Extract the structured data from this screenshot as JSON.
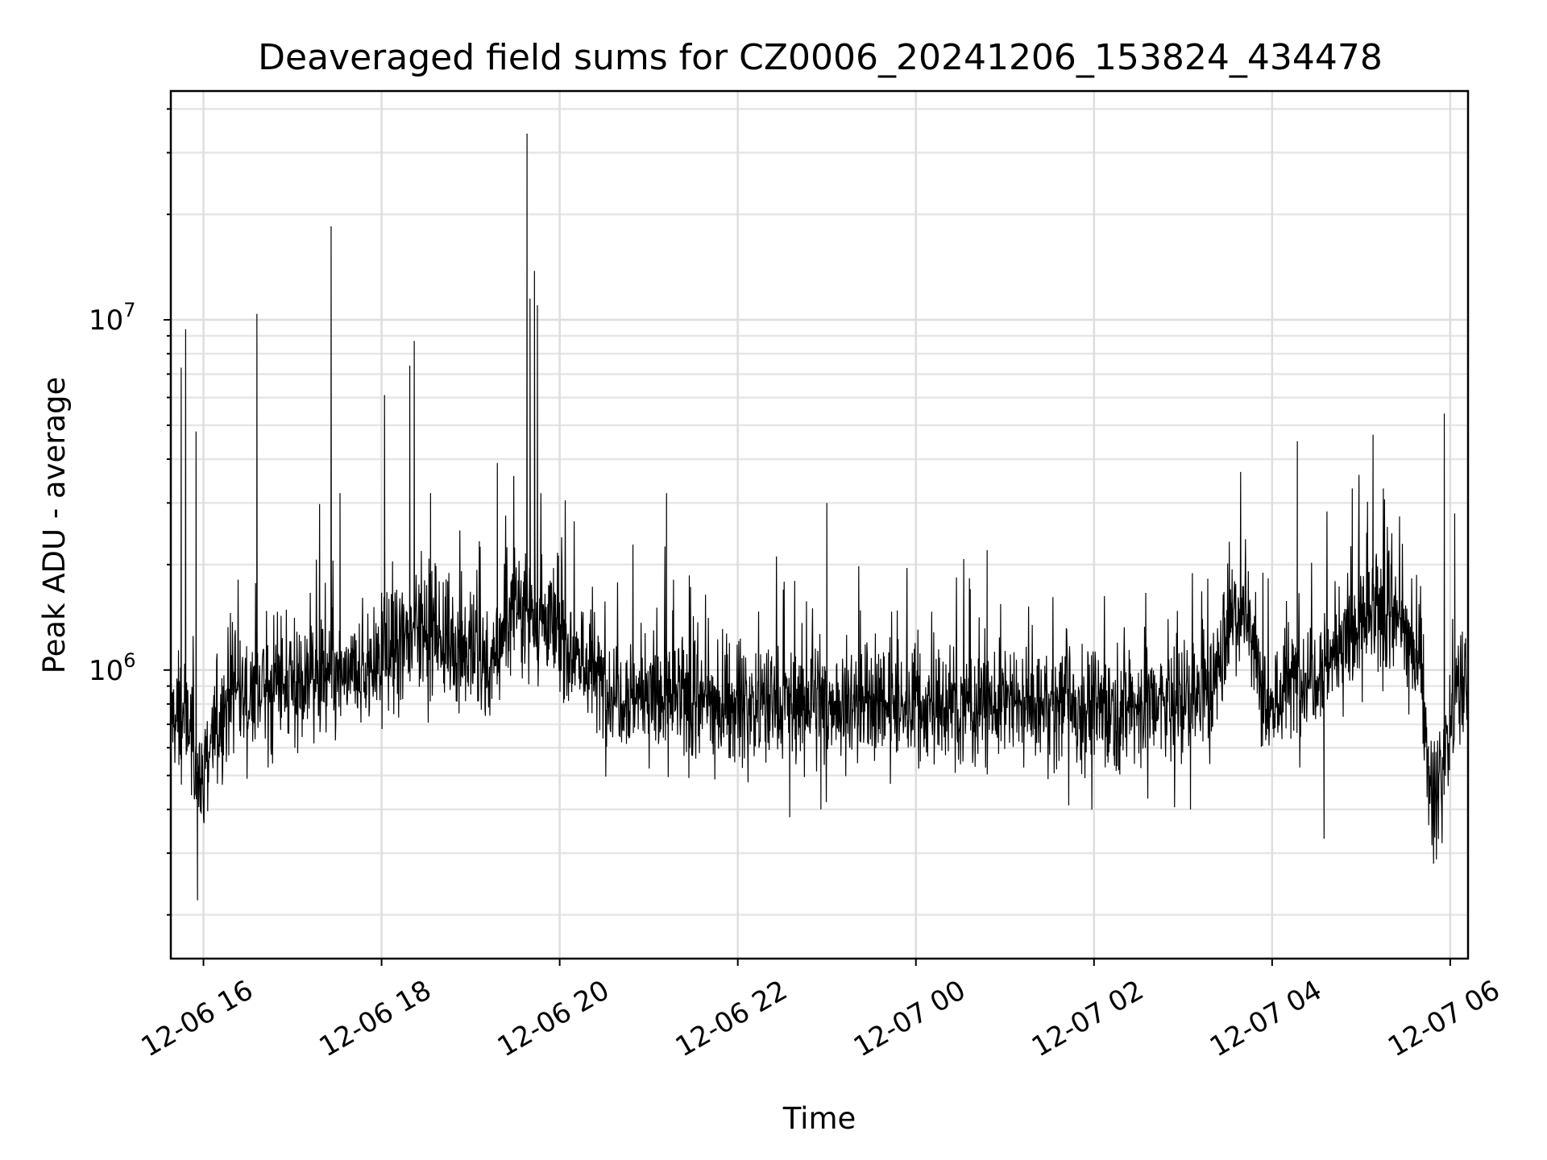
{
  "chart_data": {
    "type": "line",
    "title": "Deaveraged field sums for CZ0006_20241206_153824_434478",
    "xlabel": "Time",
    "ylabel": "Peak ADU - average",
    "yscale": "log",
    "xlim": [
      "2024-12-06 15:38",
      "2024-12-07 06:12"
    ],
    "ylim": [
      150000,
      45000000
    ],
    "grid": true,
    "x_ticks": [
      {
        "t": "2024-12-06 16:00",
        "label": "12-06 16"
      },
      {
        "t": "2024-12-06 18:00",
        "label": "12-06 18"
      },
      {
        "t": "2024-12-06 20:00",
        "label": "12-06 20"
      },
      {
        "t": "2024-12-06 22:00",
        "label": "12-06 22"
      },
      {
        "t": "2024-12-07 00:00",
        "label": "12-07 00"
      },
      {
        "t": "2024-12-07 02:00",
        "label": "12-07 02"
      },
      {
        "t": "2024-12-07 04:00",
        "label": "12-07 04"
      },
      {
        "t": "2024-12-07 06:00",
        "label": "12-07 06"
      }
    ],
    "y_ticks": [
      {
        "value": 1000000,
        "base": "10",
        "exp": "6"
      },
      {
        "value": 10000000,
        "base": "10",
        "exp": "7"
      }
    ],
    "series": [
      {
        "color": "#000000",
        "baseline": [
          {
            "t": "2024-12-06 15:38",
            "y": 750000
          },
          {
            "t": "2024-12-06 15:50",
            "y": 700000
          },
          {
            "t": "2024-12-06 15:57",
            "y": 480000
          },
          {
            "t": "2024-12-06 16:05",
            "y": 620000
          },
          {
            "t": "2024-12-06 16:20",
            "y": 850000
          },
          {
            "t": "2024-12-06 17:00",
            "y": 900000
          },
          {
            "t": "2024-12-06 17:40",
            "y": 950000
          },
          {
            "t": "2024-12-06 18:00",
            "y": 1050000
          },
          {
            "t": "2024-12-06 18:30",
            "y": 1350000
          },
          {
            "t": "2024-12-06 19:00",
            "y": 1100000
          },
          {
            "t": "2024-12-06 19:15",
            "y": 1000000
          },
          {
            "t": "2024-12-06 19:30",
            "y": 1600000
          },
          {
            "t": "2024-12-06 19:50",
            "y": 1400000
          },
          {
            "t": "2024-12-06 20:30",
            "y": 900000
          },
          {
            "t": "2024-12-06 21:30",
            "y": 800000
          },
          {
            "t": "2024-12-06 23:00",
            "y": 800000
          },
          {
            "t": "2024-12-07 00:00",
            "y": 780000
          },
          {
            "t": "2024-12-07 01:00",
            "y": 800000
          },
          {
            "t": "2024-12-07 02:00",
            "y": 780000
          },
          {
            "t": "2024-12-07 03:00",
            "y": 800000
          },
          {
            "t": "2024-12-07 03:20",
            "y": 900000
          },
          {
            "t": "2024-12-07 03:35",
            "y": 1550000
          },
          {
            "t": "2024-12-07 03:48",
            "y": 1200000
          },
          {
            "t": "2024-12-07 03:58",
            "y": 750000
          },
          {
            "t": "2024-12-07 04:10",
            "y": 900000
          },
          {
            "t": "2024-12-07 04:40",
            "y": 1100000
          },
          {
            "t": "2024-12-07 05:00",
            "y": 1350000
          },
          {
            "t": "2024-12-07 05:20",
            "y": 1450000
          },
          {
            "t": "2024-12-07 05:40",
            "y": 1100000
          },
          {
            "t": "2024-12-07 05:48",
            "y": 380000
          },
          {
            "t": "2024-12-07 05:55",
            "y": 550000
          },
          {
            "t": "2024-12-07 06:05",
            "y": 900000
          },
          {
            "t": "2024-12-07 06:12",
            "y": 900000
          }
        ],
        "spikes": [
          {
            "t": "2024-12-06 15:45",
            "y": 7300000
          },
          {
            "t": "2024-12-06 15:48",
            "y": 9400000
          },
          {
            "t": "2024-12-06 15:55",
            "y": 4800000
          },
          {
            "t": "2024-12-06 15:56",
            "y": 220000
          },
          {
            "t": "2024-12-06 16:36",
            "y": 10400000
          },
          {
            "t": "2024-12-06 17:26",
            "y": 18500000
          },
          {
            "t": "2024-12-06 17:32",
            "y": 3200000
          },
          {
            "t": "2024-12-06 18:02",
            "y": 6100000
          },
          {
            "t": "2024-12-06 18:19",
            "y": 7400000
          },
          {
            "t": "2024-12-06 18:22",
            "y": 8700000
          },
          {
            "t": "2024-12-06 18:33",
            "y": 3200000
          },
          {
            "t": "2024-12-06 19:18",
            "y": 3900000
          },
          {
            "t": "2024-12-06 19:38",
            "y": 34000000
          },
          {
            "t": "2024-12-06 19:40",
            "y": 11500000
          },
          {
            "t": "2024-12-06 19:43",
            "y": 13800000
          },
          {
            "t": "2024-12-06 19:45",
            "y": 11000000
          },
          {
            "t": "2024-12-06 21:12",
            "y": 3200000
          },
          {
            "t": "2024-12-06 22:35",
            "y": 380000
          },
          {
            "t": "2024-12-06 22:56",
            "y": 400000
          },
          {
            "t": "2024-12-06 23:00",
            "y": 3000000
          },
          {
            "t": "2024-12-07 00:48",
            "y": 2200000
          },
          {
            "t": "2024-12-07 03:05",
            "y": 400000
          },
          {
            "t": "2024-12-07 04:17",
            "y": 4500000
          },
          {
            "t": "2024-12-07 04:35",
            "y": 330000
          },
          {
            "t": "2024-12-07 04:54",
            "y": 3300000
          },
          {
            "t": "2024-12-07 05:08",
            "y": 4700000
          },
          {
            "t": "2024-12-07 05:56",
            "y": 5400000
          },
          {
            "t": "2024-12-07 06:03",
            "y": 2800000
          }
        ]
      }
    ]
  }
}
